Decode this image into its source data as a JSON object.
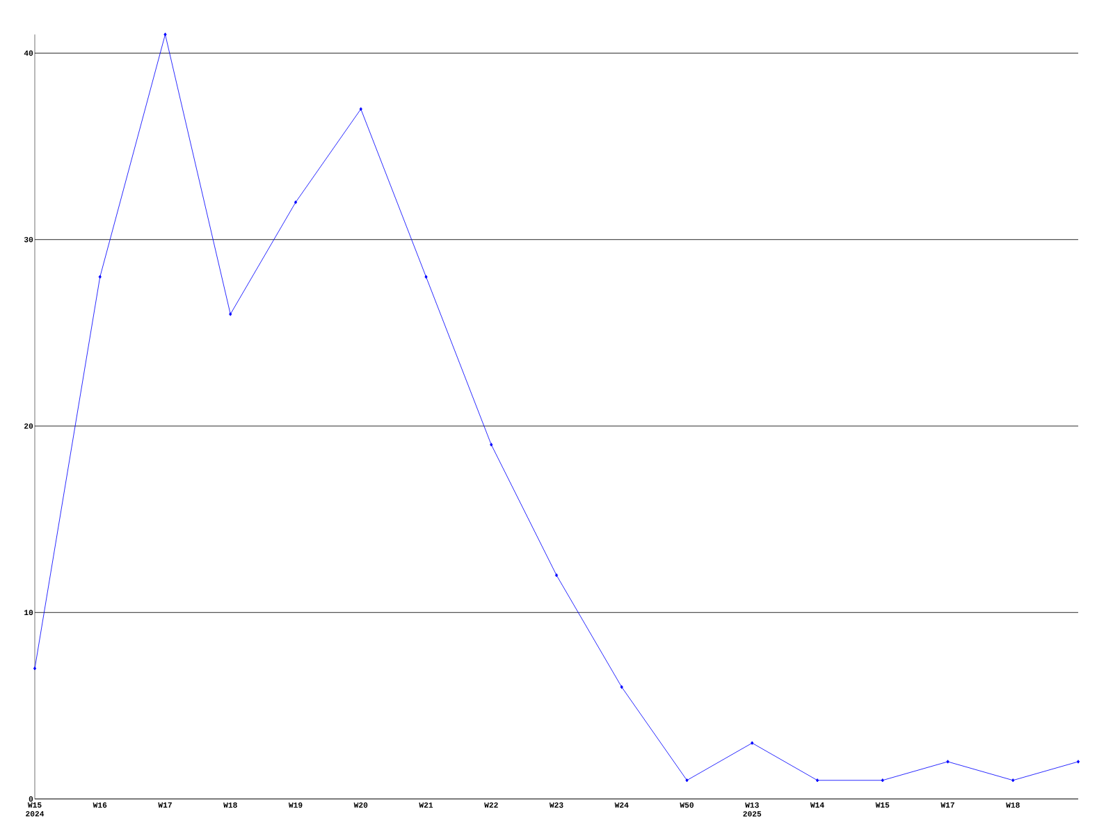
{
  "chart_data": {
    "type": "line",
    "categories": [
      "W15 2024",
      "W16",
      "W17",
      "W18",
      "W19",
      "W20",
      "W21",
      "W22",
      "W23",
      "W24",
      "W50",
      "W13 2025",
      "W14",
      "W15",
      "W17",
      "W18",
      null
    ],
    "values": [
      7,
      28,
      41,
      26,
      32,
      37,
      28,
      19,
      12,
      6,
      1,
      3,
      1,
      1,
      2,
      1,
      2
    ],
    "color": "#0000ff",
    "ylim": [
      0,
      41
    ],
    "yticks": [
      0,
      10,
      20,
      30,
      40
    ],
    "grid": "y",
    "marker": "diamond",
    "line_style": "solid"
  }
}
